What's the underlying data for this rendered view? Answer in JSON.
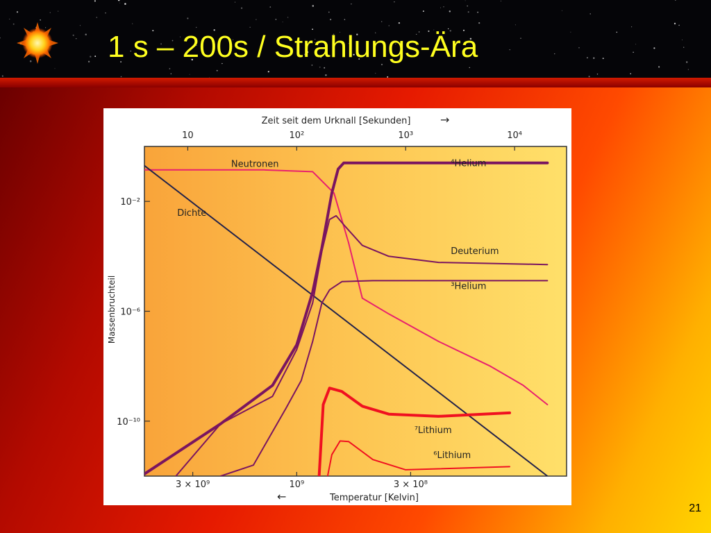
{
  "slide": {
    "title": "1 s – 200s / Strahlungs-Ära",
    "page_number": "21",
    "icon": "sun-icon"
  },
  "colors": {
    "title": "#ffff1f",
    "pink_curve": "#e8206e",
    "purple_curve": "#7a1560",
    "red_curve": "#f01020",
    "density_line": "#22224a"
  },
  "chart_data": {
    "type": "line",
    "top_axis": {
      "label": "Zeit seit dem Urknall  [Sekunden]",
      "arrow": "→",
      "scale": "log",
      "ticks": [
        {
          "value": 10,
          "label": "10"
        },
        {
          "value": 100,
          "label": "10²"
        },
        {
          "value": 1000,
          "label": "10³"
        },
        {
          "value": 10000,
          "label": "10⁴"
        }
      ]
    },
    "bottom_axis": {
      "label": "Temperatur   [Kelvin]",
      "arrow": "←",
      "ticks": [
        {
          "value": 3000000000.0,
          "label": "3 × 10⁹"
        },
        {
          "value": 1000000000.0,
          "label": "10⁹"
        },
        {
          "value": 300000000.0,
          "label": "3 × 10⁸"
        }
      ]
    },
    "y_axis": {
      "label": "Massenbruchteil",
      "scale": "log",
      "ylim": [
        1e-12,
        1
      ],
      "ticks": [
        {
          "value": 0.01,
          "label": "10⁻²"
        },
        {
          "value": 1e-06,
          "label": "10⁻⁶"
        },
        {
          "value": 1e-10,
          "label": "10⁻¹⁰"
        }
      ]
    },
    "xlim": [
      4,
      30000
    ],
    "grid": false,
    "series": [
      {
        "name": "Neutronen",
        "color_key": "pink_curve",
        "width": 2,
        "label_at": [
          25,
          0.18
        ],
        "points": [
          [
            4,
            0.14
          ],
          [
            50,
            0.14
          ],
          [
            140,
            0.12
          ],
          [
            220,
            0.02
          ],
          [
            300,
            0.0003
          ],
          [
            400,
            3e-06
          ],
          [
            700,
            8e-07
          ],
          [
            2000,
            8e-08
          ],
          [
            6000,
            1e-08
          ],
          [
            12000,
            2e-09
          ],
          [
            20000,
            4e-10
          ]
        ]
      },
      {
        "name": "Dichte",
        "color_key": "density_line",
        "width": 2,
        "label_at": [
          8,
          0.003
        ],
        "points": [
          [
            4,
            0.2
          ],
          [
            20000,
            1e-12
          ]
        ]
      },
      {
        "name": "⁴Helium",
        "color_key": "purple_curve",
        "width": 4,
        "label_at": [
          2600,
          0.19
        ],
        "points": [
          [
            4,
            1.2e-12
          ],
          [
            20,
            8e-11
          ],
          [
            60,
            2e-09
          ],
          [
            100,
            6e-08
          ],
          [
            140,
            5e-06
          ],
          [
            170,
            0.0002
          ],
          [
            210,
            0.02
          ],
          [
            240,
            0.15
          ],
          [
            270,
            0.25
          ],
          [
            20000,
            0.25
          ]
        ]
      },
      {
        "name": "Deuterium",
        "color_key": "purple_curve",
        "width": 2,
        "label_at": [
          2600,
          0.00012
        ],
        "points": [
          [
            6,
            3e-13
          ],
          [
            20,
            8e-11
          ],
          [
            60,
            8e-10
          ],
          [
            100,
            4e-08
          ],
          [
            140,
            2e-06
          ],
          [
            170,
            0.00015
          ],
          [
            200,
            0.0022
          ],
          [
            230,
            0.003
          ],
          [
            280,
            0.0012
          ],
          [
            400,
            0.00025
          ],
          [
            700,
            0.0001
          ],
          [
            2000,
            6e-05
          ],
          [
            20000,
            5e-05
          ]
        ]
      },
      {
        "name": "³Helium",
        "color_key": "purple_curve",
        "width": 2,
        "label_at": [
          2600,
          6.5e-06
        ],
        "points": [
          [
            20,
            1e-12
          ],
          [
            40,
            2.5e-12
          ],
          [
            80,
            3e-10
          ],
          [
            110,
            3e-09
          ],
          [
            140,
            8e-08
          ],
          [
            170,
            2e-06
          ],
          [
            200,
            6e-06
          ],
          [
            260,
            1.2e-05
          ],
          [
            500,
            1.3e-05
          ],
          [
            20000,
            1.3e-05
          ]
        ]
      },
      {
        "name": "⁷Lithium",
        "color_key": "red_curve",
        "width": 4,
        "label_at": [
          1200,
          3.7e-11
        ],
        "points": [
          [
            160,
            8e-13
          ],
          [
            175,
            4e-10
          ],
          [
            200,
            1.6e-09
          ],
          [
            260,
            1.2e-09
          ],
          [
            400,
            3.5e-10
          ],
          [
            700,
            1.8e-10
          ],
          [
            2000,
            1.5e-10
          ],
          [
            9000,
            2e-10
          ]
        ]
      },
      {
        "name": "⁶Lithium",
        "color_key": "red_curve",
        "width": 2,
        "label_at": [
          1800,
          4.5e-12
        ],
        "points": [
          [
            190,
            8e-13
          ],
          [
            210,
            6e-12
          ],
          [
            250,
            1.9e-11
          ],
          [
            300,
            1.8e-11
          ],
          [
            500,
            4e-12
          ],
          [
            1000,
            1.7e-12
          ],
          [
            9000,
            2.2e-12
          ]
        ]
      }
    ]
  }
}
